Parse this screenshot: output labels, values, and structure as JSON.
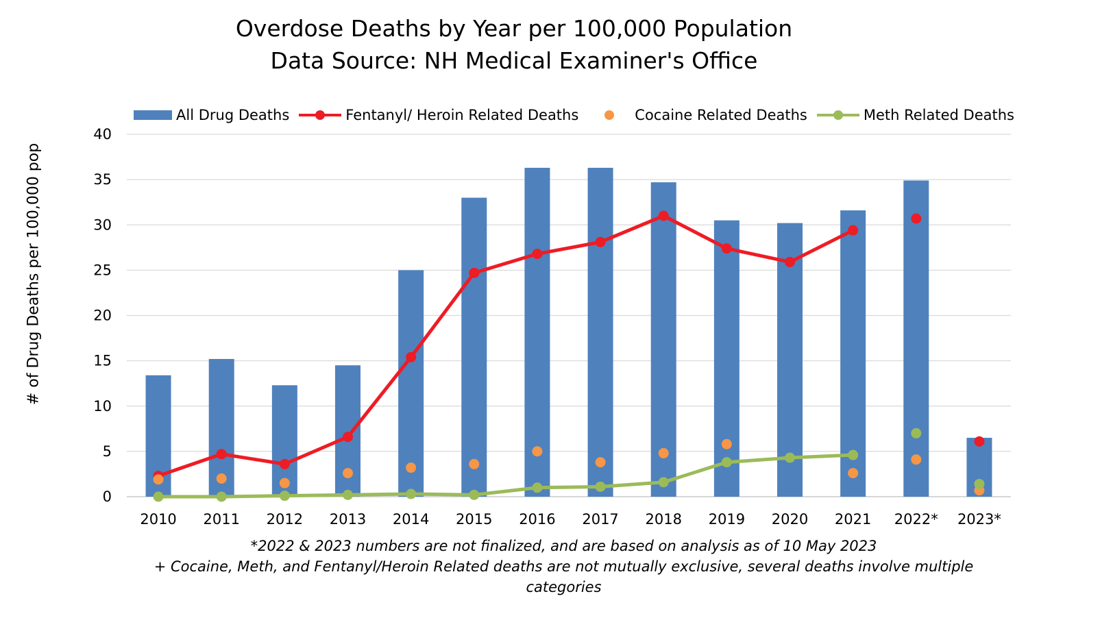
{
  "chart_data": {
    "type": "bar",
    "title": "Overdose Deaths by Year per 100,000 Population",
    "subtitle": "Data Source: NH Medical Examiner's Office",
    "xlabel": "",
    "ylabel": "# of Drug Deaths per 100,000 pop",
    "ylim": [
      0,
      40
    ],
    "yticks": [
      "0",
      "5",
      "10",
      "15",
      "20",
      "25",
      "30",
      "35",
      "40"
    ],
    "grid": true,
    "legend_position": "top",
    "categories": [
      "2010",
      "2011",
      "2012",
      "2013",
      "2014",
      "2015",
      "2016",
      "2017",
      "2018",
      "2019",
      "2020",
      "2021",
      "2022*",
      "2023*"
    ],
    "series": [
      {
        "name": "All Drug Deaths",
        "kind": "bar",
        "color": "#4f81bd",
        "values": [
          13.4,
          15.2,
          12.3,
          14.5,
          25.0,
          33.0,
          36.3,
          36.3,
          34.7,
          30.5,
          30.2,
          31.6,
          34.9,
          6.5
        ]
      },
      {
        "name": "Fentanyl/ Heroin Related Deaths",
        "kind": "line",
        "color": "#ee1c25",
        "values": [
          2.3,
          4.7,
          3.6,
          6.6,
          15.4,
          24.7,
          26.8,
          28.1,
          31.0,
          27.4,
          25.9,
          29.4,
          30.7,
          6.1
        ],
        "connected_through": "2021"
      },
      {
        "name": "Cocaine Related Deaths",
        "kind": "scatter",
        "color": "#f79646",
        "values": [
          1.9,
          2.0,
          1.5,
          2.6,
          3.2,
          3.6,
          5.0,
          3.8,
          4.8,
          5.8,
          null,
          2.6,
          4.1,
          0.7
        ]
      },
      {
        "name": "Meth Related Deaths",
        "kind": "line",
        "color": "#9bbb59",
        "values": [
          0.0,
          0.0,
          0.1,
          0.2,
          0.3,
          0.2,
          1.0,
          1.1,
          1.6,
          3.8,
          4.3,
          4.6,
          7.0,
          1.4
        ],
        "connected_through": "2021"
      }
    ],
    "footnotes": [
      "*2022 & 2023 numbers are not finalized, and are based on analysis as of 10 May 2023",
      "+ Cocaine, Meth, and Fentanyl/Heroin Related deaths are not mutually exclusive, several deaths involve multiple",
      "categories"
    ]
  }
}
